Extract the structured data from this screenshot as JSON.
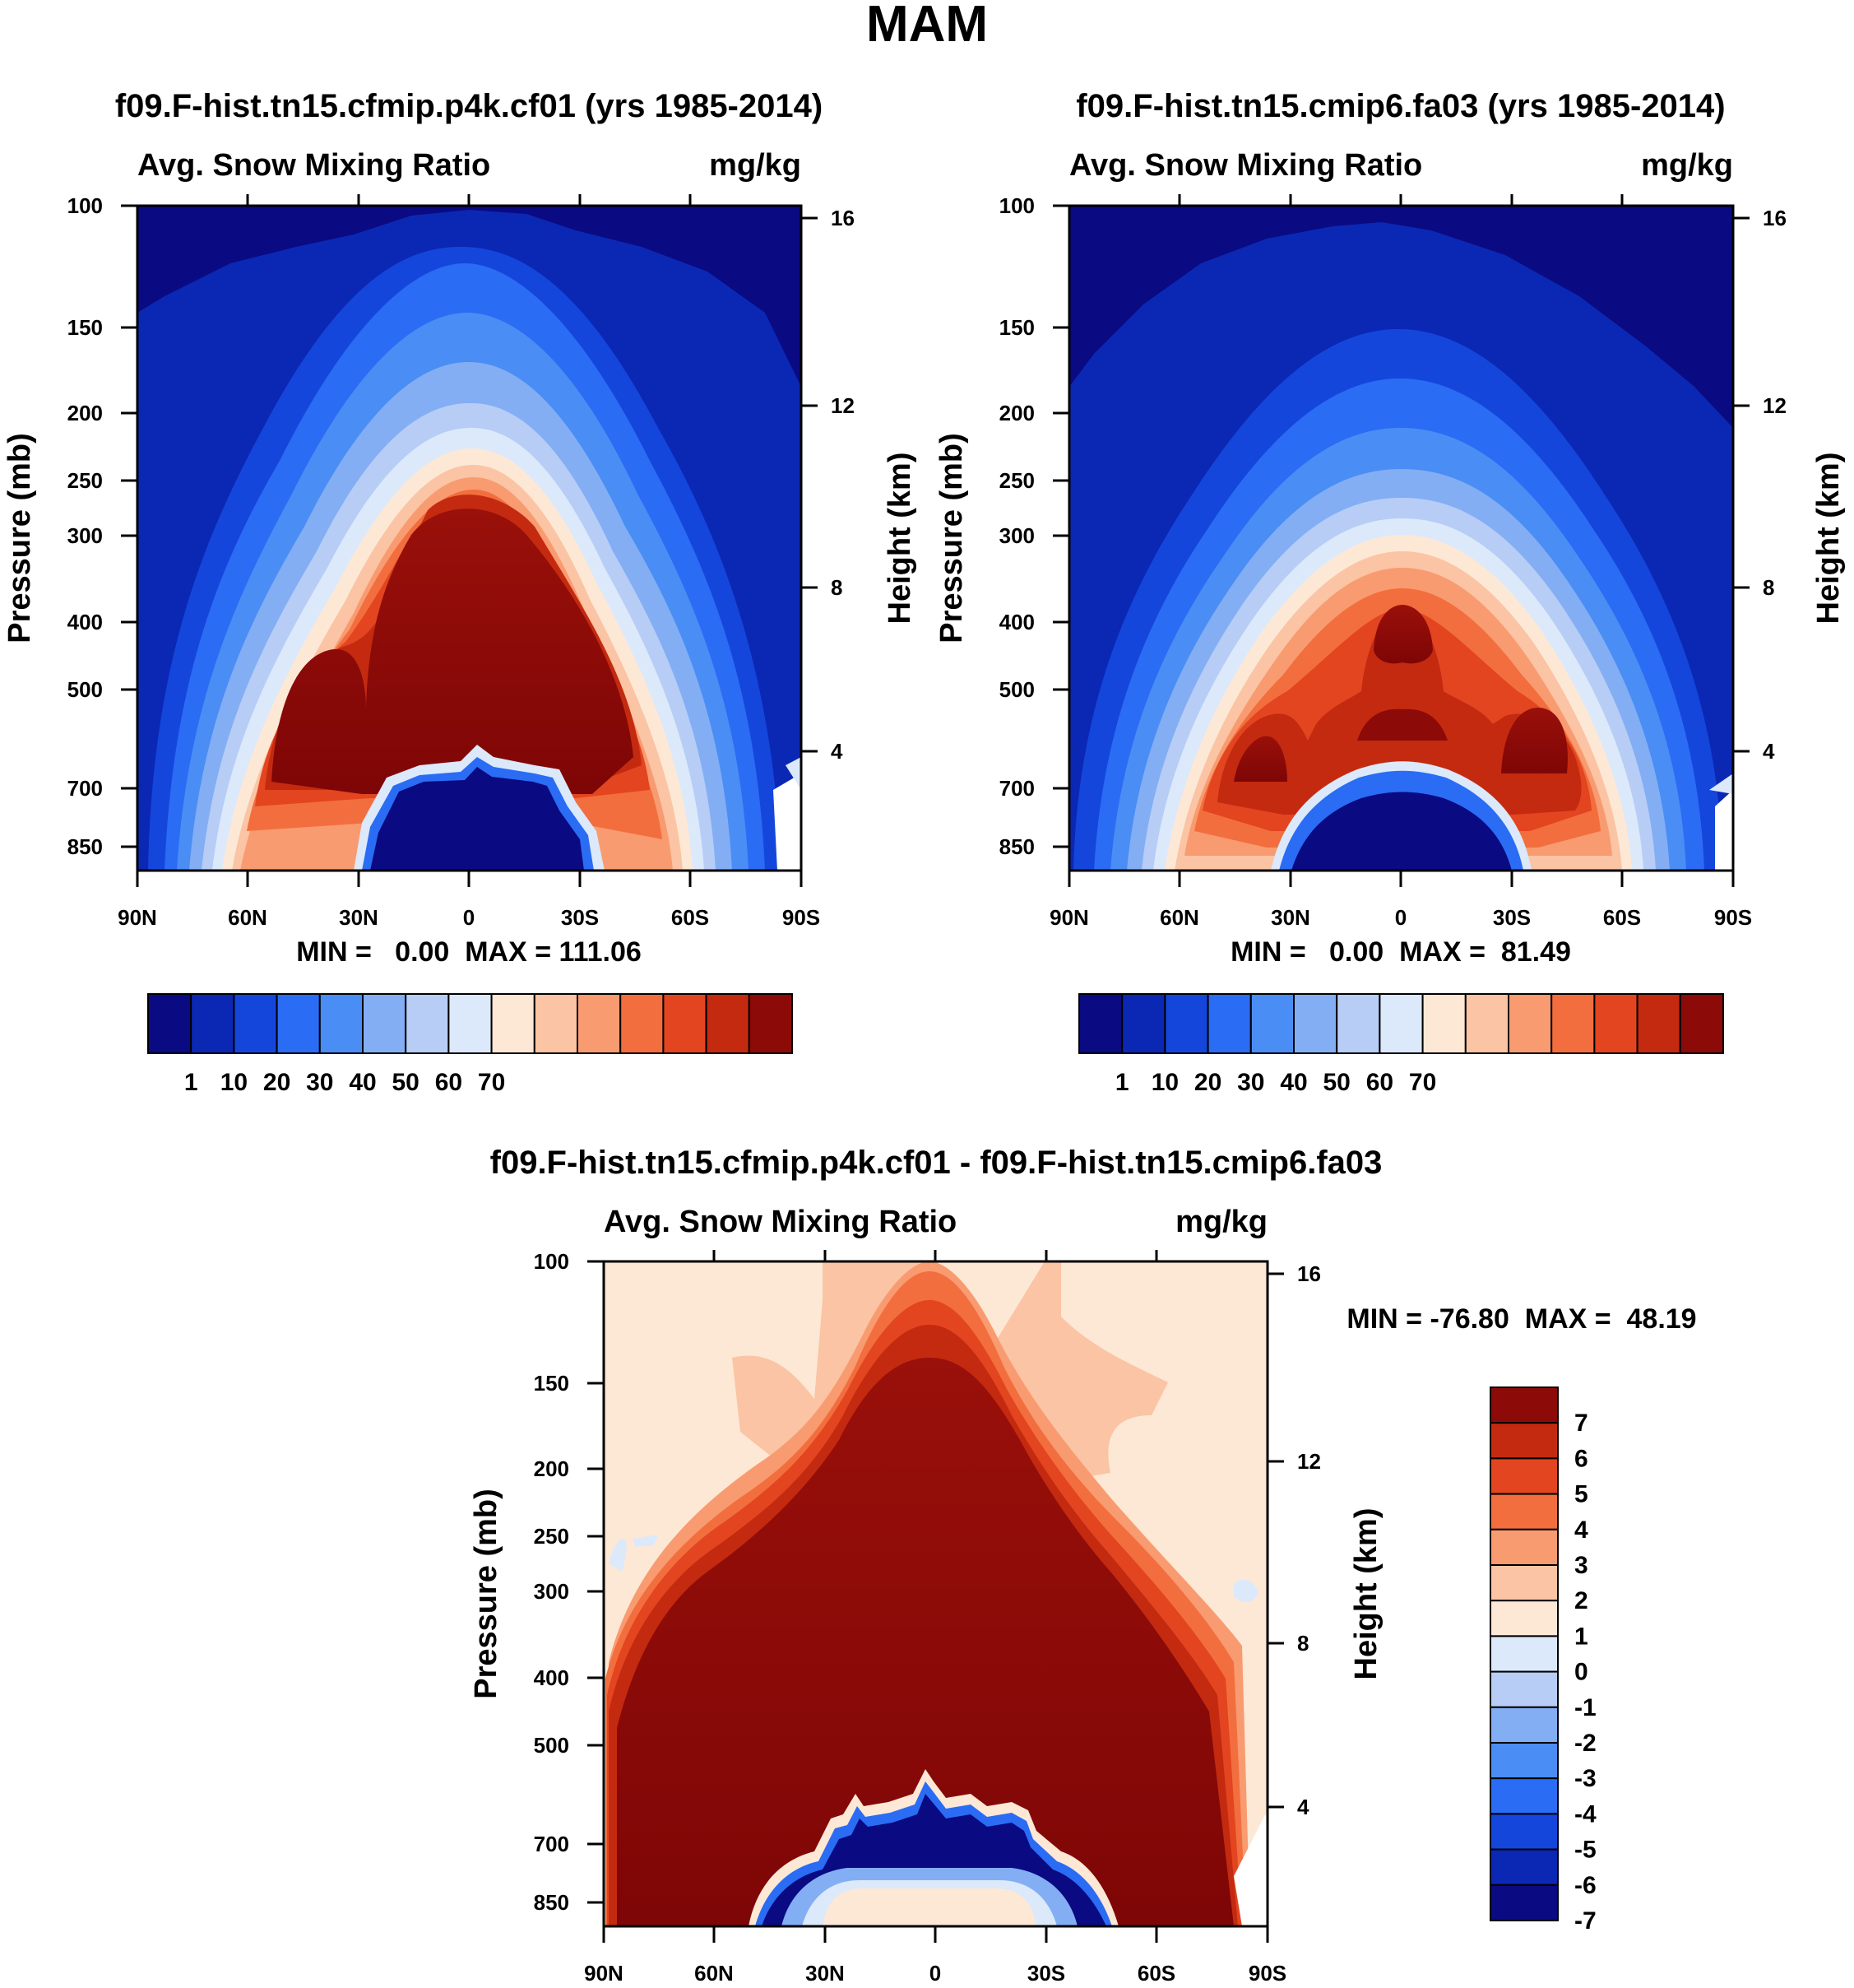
{
  "page_title": "MAM",
  "chart_data": [
    {
      "type": "heatmap",
      "title": "f09.F-hist.tn15.cfmip.p4k.cf01 (yrs 1985-2014)",
      "subtitle_left": "Avg. Snow Mixing Ratio",
      "subtitle_right": "mg/kg",
      "ylabel": "Pressure (mb)",
      "ylabel_right": "Height (km)",
      "x_ticks": [
        "90N",
        "60N",
        "30N",
        "0",
        "30S",
        "60S",
        "90S"
      ],
      "y_ticks": [
        "100",
        "150",
        "200",
        "250",
        "300",
        "400",
        "500",
        "700",
        "850"
      ],
      "y_ticks_right": [
        "16",
        "12",
        "8",
        "4"
      ],
      "stats": "MIN =   0.00  MAX = 111.06",
      "colorbar_labels": [
        "1",
        "10",
        "20",
        "30",
        "40",
        "50",
        "60",
        "70"
      ],
      "colorbar_colors": [
        "#0a0a82",
        "#0b28b4",
        "#1546dc",
        "#2a6cf4",
        "#4a8df4",
        "#83aef4",
        "#b7cdf6",
        "#dbe9fb",
        "#fde8d6",
        "#fbc4a4",
        "#f99b70",
        "#f26e3e",
        "#e2451f",
        "#c42a10",
        "#8c0a07"
      ]
    },
    {
      "type": "heatmap",
      "title": "f09.F-hist.tn15.cmip6.fa03 (yrs 1985-2014)",
      "subtitle_left": "Avg. Snow Mixing Ratio",
      "subtitle_right": "mg/kg",
      "ylabel": "Pressure (mb)",
      "ylabel_right": "Height (km)",
      "x_ticks": [
        "90N",
        "60N",
        "30N",
        "0",
        "30S",
        "60S",
        "90S"
      ],
      "y_ticks": [
        "100",
        "150",
        "200",
        "250",
        "300",
        "400",
        "500",
        "700",
        "850"
      ],
      "y_ticks_right": [
        "16",
        "12",
        "8",
        "4"
      ],
      "stats": "MIN =   0.00  MAX =  81.49",
      "colorbar_labels": [
        "1",
        "10",
        "20",
        "30",
        "40",
        "50",
        "60",
        "70"
      ],
      "colorbar_colors": [
        "#0a0a82",
        "#0b28b4",
        "#1546dc",
        "#2a6cf4",
        "#4a8df4",
        "#83aef4",
        "#b7cdf6",
        "#dbe9fb",
        "#fde8d6",
        "#fbc4a4",
        "#f99b70",
        "#f26e3e",
        "#e2451f",
        "#c42a10",
        "#8c0a07"
      ]
    },
    {
      "type": "heatmap",
      "title": "f09.F-hist.tn15.cfmip.p4k.cf01 - f09.F-hist.tn15.cmip6.fa03",
      "subtitle_left": "Avg. Snow Mixing Ratio",
      "subtitle_right": "mg/kg",
      "ylabel": "Pressure (mb)",
      "ylabel_right": "Height (km)",
      "x_ticks": [
        "90N",
        "60N",
        "30N",
        "0",
        "30S",
        "60S",
        "90S"
      ],
      "y_ticks": [
        "100",
        "150",
        "200",
        "250",
        "300",
        "400",
        "500",
        "700",
        "850"
      ],
      "y_ticks_right": [
        "16",
        "12",
        "8",
        "4"
      ],
      "stats": "MIN = -76.80  MAX =  48.19",
      "colorbar_labels": [
        "7",
        "6",
        "5",
        "4",
        "3",
        "2",
        "1",
        "0",
        "-1",
        "-2",
        "-3",
        "-4",
        "-5",
        "-6",
        "-7"
      ],
      "colorbar_colors": [
        "#8c0a07",
        "#c42a10",
        "#e2451f",
        "#f26e3e",
        "#f99b70",
        "#fbc4a4",
        "#fde8d6",
        "#dbe9fb",
        "#b7cdf6",
        "#83aef4",
        "#4a8df4",
        "#2a6cf4",
        "#1546dc",
        "#0b28b4",
        "#0a0a82"
      ]
    }
  ]
}
